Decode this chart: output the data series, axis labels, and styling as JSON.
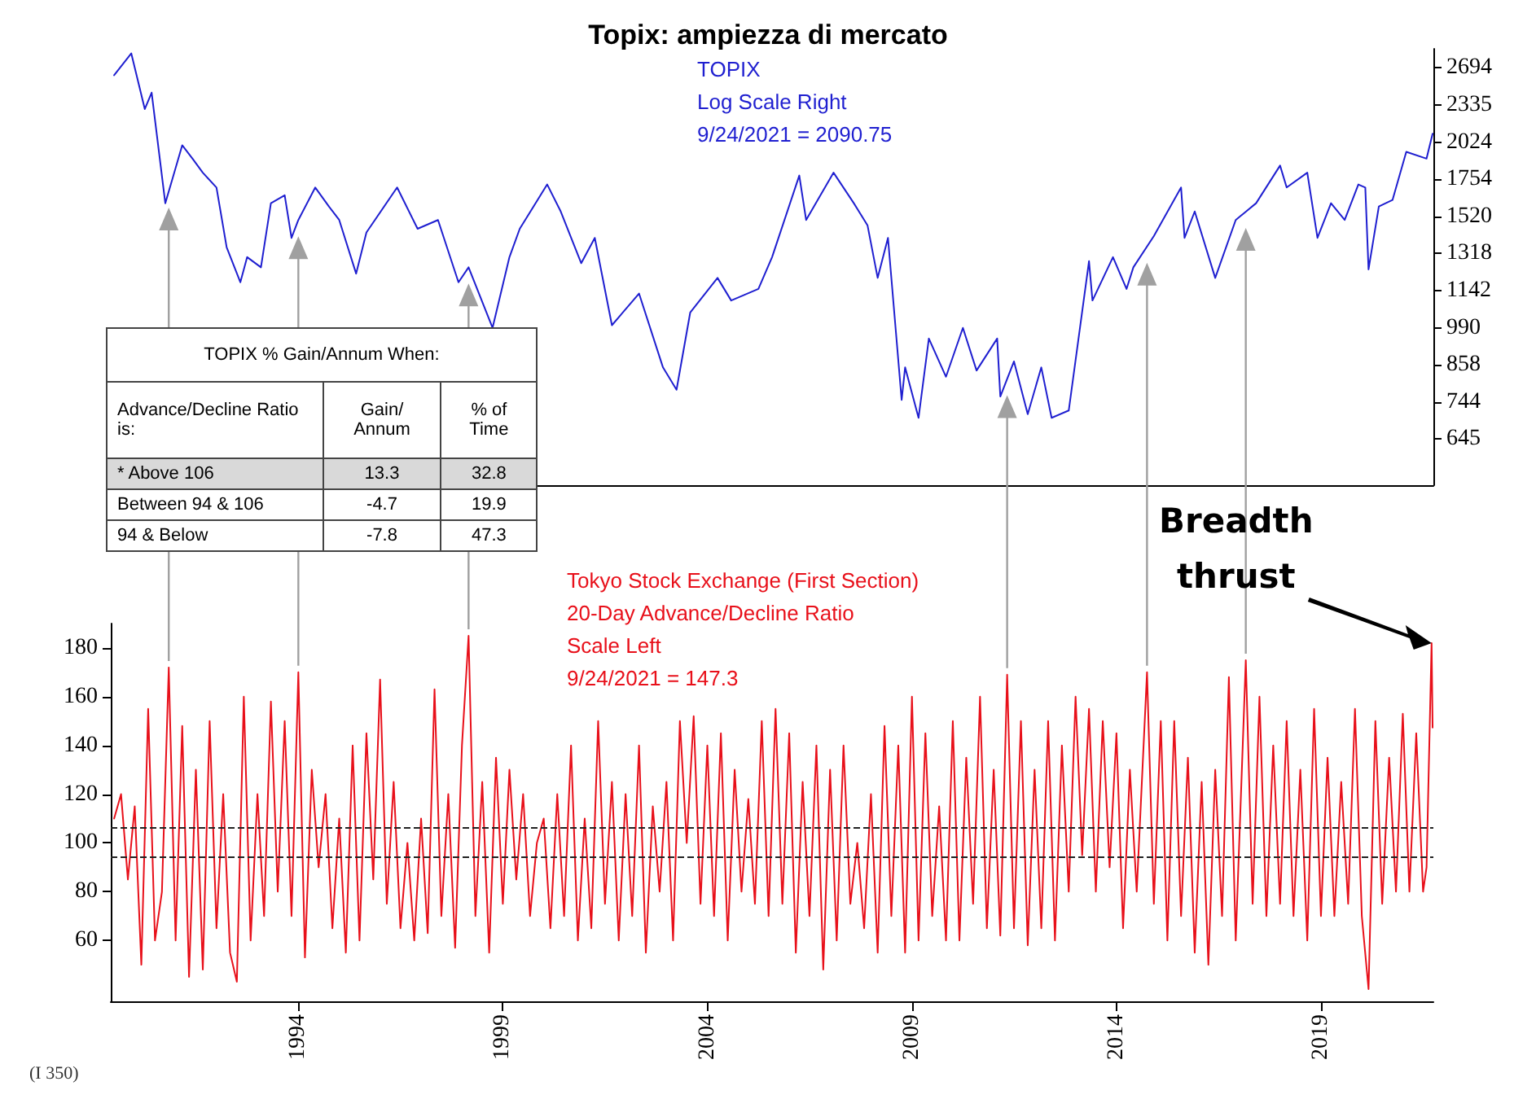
{
  "chart_data": [
    {
      "type": "line",
      "title": "Topix: ampiezza di mercato",
      "annotations": [
        "TOPIX",
        "Log Scale Right",
        "9/24/2021 = 2090.75"
      ],
      "log": true,
      "ylim": [
        540,
        2900
      ],
      "yticks": [
        645,
        744,
        858,
        990,
        1142,
        1318,
        1520,
        1754,
        2024,
        2335,
        2694
      ],
      "xlim": [
        "1989-06",
        "2021-10"
      ],
      "xticks": [
        "1994",
        "1999",
        "2004",
        "2009",
        "2014",
        "2019"
      ],
      "tick_labels": "y",
      "marker": "none",
      "line_style": "solid",
      "series": [
        {
          "color": "#1f1fd0",
          "x": [
            "1989-07",
            "1989-12",
            "1990-04",
            "1990-06",
            "1990-10",
            "1990-12",
            "1991-03",
            "1991-06",
            "1991-09",
            "1992-01",
            "1992-04",
            "1992-08",
            "1992-10",
            "1993-02",
            "1993-05",
            "1993-09",
            "1993-11",
            "1994-01",
            "1994-06",
            "1994-10",
            "1995-01",
            "1995-06",
            "1995-09",
            "1996-06",
            "1996-12",
            "1997-06",
            "1997-12",
            "1998-03",
            "1998-10",
            "1999-03",
            "1999-06",
            "2000-02",
            "2000-06",
            "2000-12",
            "2001-04",
            "2001-09",
            "2002-05",
            "2002-12",
            "2003-04",
            "2003-08",
            "2004-04",
            "2004-08",
            "2005-04",
            "2005-08",
            "2006-04",
            "2006-06",
            "2007-02",
            "2007-08",
            "2007-12",
            "2008-03",
            "2008-06",
            "2008-10",
            "2008-11",
            "2009-03",
            "2009-06",
            "2009-11",
            "2010-04",
            "2010-08",
            "2011-02",
            "2011-03",
            "2011-07",
            "2011-11",
            "2012-03",
            "2012-06",
            "2012-11",
            "2013-05",
            "2013-06",
            "2013-12",
            "2014-04",
            "2014-06",
            "2014-12",
            "2015-08",
            "2015-09",
            "2015-12",
            "2016-06",
            "2016-12",
            "2017-06",
            "2018-01",
            "2018-03",
            "2018-09",
            "2018-12",
            "2019-04",
            "2019-08",
            "2019-12",
            "2020-02",
            "2020-03",
            "2020-06",
            "2020-10",
            "2021-02",
            "2021-08",
            "2021-09-24"
          ],
          "values": [
            2620,
            2850,
            2300,
            2450,
            1600,
            1750,
            2000,
            1900,
            1800,
            1700,
            1350,
            1180,
            1300,
            1250,
            1600,
            1650,
            1400,
            1500,
            1700,
            1580,
            1500,
            1220,
            1430,
            1700,
            1450,
            1500,
            1180,
            1250,
            990,
            1300,
            1450,
            1720,
            1550,
            1270,
            1400,
            1000,
            1130,
            850,
            780,
            1050,
            1200,
            1100,
            1150,
            1300,
            1780,
            1500,
            1800,
            1600,
            1470,
            1200,
            1400,
            750,
            850,
            700,
            950,
            820,
            990,
            840,
            950,
            760,
            870,
            710,
            850,
            700,
            720,
            1280,
            1100,
            1300,
            1150,
            1250,
            1410,
            1700,
            1400,
            1550,
            1200,
            1500,
            1600,
            1850,
            1700,
            1800,
            1400,
            1600,
            1500,
            1720,
            1700,
            1240,
            1580,
            1620,
            1950,
            1900,
            2090.75
          ]
        }
      ]
    },
    {
      "type": "line",
      "xlabel": "(I 350)",
      "annotations": [
        "Tokyo Stock Exchange (First Section)",
        "20-Day Advance/Decline Ratio",
        "Scale Left",
        "9/24/2021 = 147.3",
        "Breadth thrust"
      ],
      "ylim": [
        35,
        190
      ],
      "yticks": [
        60,
        80,
        100,
        120,
        140,
        160,
        180
      ],
      "xlim": [
        "1989-06",
        "2021-10"
      ],
      "xticks": [
        "1994",
        "1999",
        "2004",
        "2009",
        "2014",
        "2019"
      ],
      "marker": "none",
      "line_style": "solid",
      "ref_lines": [
        {
          "axis": "y",
          "value": 106,
          "color": "#222222",
          "line_style": "dashed"
        },
        {
          "axis": "y",
          "value": 94,
          "color": "#222222",
          "line_style": "dashed"
        }
      ],
      "series": [
        {
          "color": "#e8101a",
          "x": [
            "1989-07",
            "1989-09",
            "1989-11",
            "1990-01",
            "1990-03",
            "1990-05",
            "1990-07",
            "1990-09",
            "1990-11",
            "1991-01",
            "1991-03",
            "1991-05",
            "1991-07",
            "1991-09",
            "1991-11",
            "1992-01",
            "1992-03",
            "1992-05",
            "1992-07",
            "1992-09",
            "1992-11",
            "1993-01",
            "1993-03",
            "1993-05",
            "1993-07",
            "1993-09",
            "1993-11",
            "1994-01",
            "1994-03",
            "1994-05",
            "1994-07",
            "1994-09",
            "1994-11",
            "1995-01",
            "1995-03",
            "1995-05",
            "1995-07",
            "1995-09",
            "1995-11",
            "1996-01",
            "1996-03",
            "1996-05",
            "1996-07",
            "1996-09",
            "1996-11",
            "1997-01",
            "1997-03",
            "1997-05",
            "1997-07",
            "1997-09",
            "1997-11",
            "1998-01",
            "1998-03",
            "1998-05",
            "1998-07",
            "1998-09",
            "1998-11",
            "1999-01",
            "1999-03",
            "1999-05",
            "1999-07",
            "1999-09",
            "1999-11",
            "2000-01",
            "2000-03",
            "2000-05",
            "2000-07",
            "2000-09",
            "2000-11",
            "2001-01",
            "2001-03",
            "2001-05",
            "2001-07",
            "2001-09",
            "2001-11",
            "2002-01",
            "2002-03",
            "2002-05",
            "2002-07",
            "2002-09",
            "2002-11",
            "2003-01",
            "2003-03",
            "2003-05",
            "2003-07",
            "2003-09",
            "2003-11",
            "2004-01",
            "2004-03",
            "2004-05",
            "2004-07",
            "2004-09",
            "2004-11",
            "2005-01",
            "2005-03",
            "2005-05",
            "2005-07",
            "2005-09",
            "2005-11",
            "2006-01",
            "2006-03",
            "2006-05",
            "2006-07",
            "2006-09",
            "2006-11",
            "2007-01",
            "2007-03",
            "2007-05",
            "2007-07",
            "2007-09",
            "2007-11",
            "2008-01",
            "2008-03",
            "2008-05",
            "2008-07",
            "2008-09",
            "2008-11",
            "2009-01",
            "2009-03",
            "2009-05",
            "2009-07",
            "2009-09",
            "2009-11",
            "2010-01",
            "2010-03",
            "2010-05",
            "2010-07",
            "2010-09",
            "2010-11",
            "2011-01",
            "2011-03",
            "2011-05",
            "2011-07",
            "2011-09",
            "2011-11",
            "2012-01",
            "2012-03",
            "2012-05",
            "2012-07",
            "2012-09",
            "2012-11",
            "2013-01",
            "2013-03",
            "2013-05",
            "2013-07",
            "2013-09",
            "2013-11",
            "2014-01",
            "2014-03",
            "2014-05",
            "2014-07",
            "2014-10",
            "2014-12",
            "2015-02",
            "2015-04",
            "2015-06",
            "2015-08",
            "2015-10",
            "2015-12",
            "2016-02",
            "2016-04",
            "2016-06",
            "2016-08",
            "2016-10",
            "2016-12",
            "2017-03",
            "2017-05",
            "2017-07",
            "2017-09",
            "2017-11",
            "2018-01",
            "2018-03",
            "2018-05",
            "2018-07",
            "2018-09",
            "2018-11",
            "2019-01",
            "2019-03",
            "2019-05",
            "2019-07",
            "2019-09",
            "2019-11",
            "2020-01",
            "2020-03",
            "2020-05",
            "2020-07",
            "2020-09",
            "2020-11",
            "2021-01",
            "2021-03",
            "2021-05",
            "2021-07",
            "2021-08",
            "2021-09-15",
            "2021-09-24"
          ],
          "values": [
            110,
            120,
            85,
            115,
            50,
            155,
            60,
            80,
            172,
            60,
            148,
            45,
            130,
            48,
            150,
            65,
            120,
            55,
            43,
            160,
            60,
            120,
            70,
            158,
            80,
            150,
            70,
            170,
            53,
            130,
            90,
            120,
            65,
            110,
            55,
            140,
            60,
            145,
            85,
            167,
            75,
            125,
            65,
            100,
            60,
            110,
            63,
            163,
            70,
            120,
            57,
            140,
            185,
            70,
            125,
            55,
            135,
            75,
            130,
            85,
            120,
            70,
            100,
            110,
            65,
            120,
            70,
            140,
            60,
            110,
            65,
            150,
            75,
            125,
            60,
            120,
            70,
            140,
            55,
            115,
            80,
            125,
            60,
            150,
            100,
            152,
            75,
            140,
            70,
            145,
            60,
            130,
            80,
            118,
            75,
            150,
            70,
            155,
            75,
            145,
            55,
            125,
            70,
            140,
            48,
            130,
            60,
            140,
            75,
            100,
            65,
            120,
            55,
            148,
            70,
            140,
            55,
            160,
            60,
            145,
            70,
            115,
            60,
            150,
            60,
            135,
            75,
            160,
            65,
            130,
            62,
            169,
            65,
            150,
            58,
            130,
            65,
            150,
            60,
            140,
            80,
            160,
            95,
            155,
            80,
            150,
            90,
            145,
            65,
            130,
            80,
            170,
            75,
            150,
            60,
            150,
            70,
            135,
            55,
            125,
            50,
            130,
            70,
            168,
            60,
            175,
            75,
            160,
            70,
            140,
            75,
            150,
            70,
            130,
            60,
            155,
            70,
            135,
            70,
            125,
            75,
            155,
            70,
            40,
            150,
            75,
            135,
            80,
            153,
            80,
            145,
            80,
            90,
            182,
            147.3
          ]
        }
      ]
    },
    {
      "type": "other",
      "title": "TOPIX % Gain/Annum When:",
      "annotations": [
        "Advance/Decline Ratio is:"
      ],
      "categories": [
        "* Above 106",
        "Between 94 & 106",
        "94 & Below"
      ],
      "data_labels": true,
      "series": [
        {
          "name": "Gain/ Annum",
          "values": [
            13.3,
            -4.7,
            -7.8
          ],
          "colors": [
            "#d9d9d9",
            "#ffffff",
            "#ffffff"
          ]
        },
        {
          "name": "% of Time",
          "values": [
            32.8,
            19.9,
            47.3
          ],
          "colors": [
            "#d9d9d9",
            "#ffffff",
            "#ffffff"
          ]
        }
      ]
    }
  ]
}
